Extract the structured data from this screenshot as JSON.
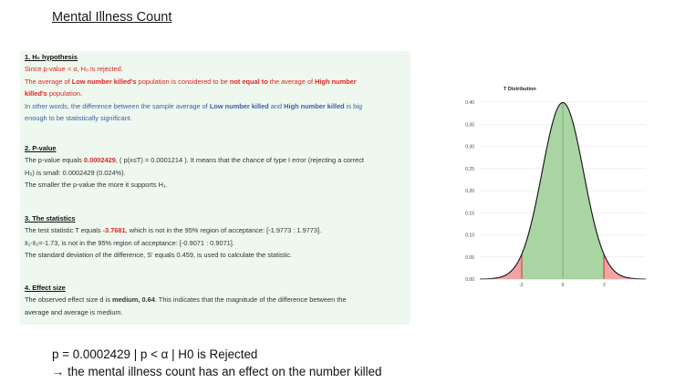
{
  "doc_title": "Mental Illness Count",
  "hypothesis": {
    "heading": "1. H₀ hypothesis",
    "line1": "Since p-value < α, H₀ is rejected.",
    "line2_a": "The average of ",
    "line2_b": "Low number killed's",
    "line2_c": " population is considered to be ",
    "line2_d": "not equal to",
    "line2_e": " the average of ",
    "line2_f": "High number",
    "line3_a": "killed's",
    "line3_b": " population.",
    "line4_a": "In other words, the difference between the sample average of ",
    "line4_b": "Low number killed",
    "line4_c": " and ",
    "line4_d": "High number killed",
    "line4_e": " is big",
    "line5": "enough to be statistically significant."
  },
  "pvalue": {
    "heading": "2. P-value",
    "line1_a": "The p-value equals ",
    "line1_b": "0.0002429",
    "line1_c": ", ( p(x≤T) = 0.0001214 ). It means that the chance of type I error (rejecting a correct",
    "line2": "H₀) is small: 0.0002429 (0.024%).",
    "line3": "The smaller the p-value the more it supports H₁."
  },
  "statistics": {
    "heading": "3. The statistics",
    "line1_a": "The test statistic T equals ",
    "line1_b": "-3.7681",
    "line1_c": ", which is not in the 95% region of acceptance: [-1.9773 : 1.9773].",
    "line2": "x̄₁-x̄₂=-1.73, is not in the 95% region of acceptance: [-0.9071 : 0.9071].",
    "line3": "The standard deviation of the difference, S' equals 0.459, is used to calculate the statistic."
  },
  "effect": {
    "heading": "4. Effect size",
    "line1_a": "The observed effect size d is ",
    "line1_b": "medium, 0.64",
    "line1_c": ". This indicates that the magnitude of the difference between the",
    "line2": "average and average is medium."
  },
  "notes": {
    "line1": "p = 0.0002429 | p < α | H0 is Rejected",
    "line2": "→ the mental illness count has an effect on the number killed"
  },
  "chart_data": {
    "type": "area",
    "title": "T Distribution",
    "xlabel": "",
    "ylabel": "",
    "xlim": [
      -4,
      4
    ],
    "ylim": [
      0,
      0.4
    ],
    "x_ticks": [
      "-2",
      "0",
      "2"
    ],
    "y_ticks": [
      "0.00",
      "0.05",
      "0.10",
      "0.15",
      "0.20",
      "0.25",
      "0.30",
      "0.35",
      "0.40"
    ],
    "grid": true,
    "acceptance_region": [
      -1.9773,
      1.9773
    ],
    "colors": {
      "acceptance": "#a8d5a2",
      "rejection": "#f4a3a3",
      "critical_line": "#e03030",
      "curve": "#111111",
      "mean_line": "#7a9a7a"
    }
  }
}
